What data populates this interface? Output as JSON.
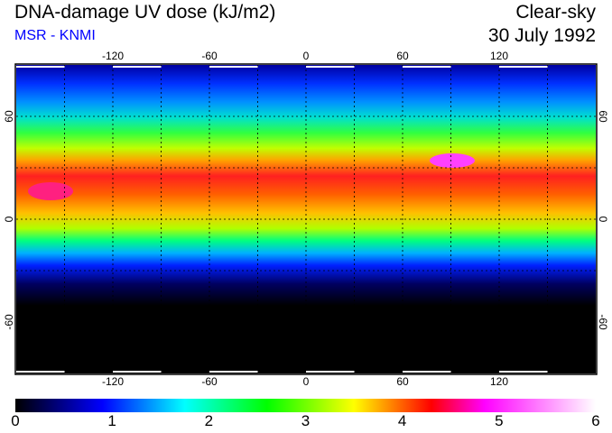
{
  "header": {
    "title": "DNA-damage UV dose (kJ/m2)",
    "credit": "MSR - KNMI",
    "condition": "Clear-sky",
    "date": "30 July 1992"
  },
  "map": {
    "lon_ticks": [
      "-120",
      "-60",
      "0",
      "60",
      "120"
    ],
    "lon_values": [
      -120,
      -60,
      0,
      60,
      120
    ],
    "lat_ticks": [
      "60",
      "0",
      "-60"
    ],
    "lat_values": [
      60,
      0,
      -60
    ],
    "lon_range": [
      -180,
      180
    ],
    "lat_range": [
      -90,
      90
    ]
  },
  "colorbar": {
    "ticks": [
      "0",
      "1",
      "2",
      "3",
      "4",
      "5",
      "6"
    ],
    "range": [
      0,
      6
    ],
    "stops": [
      {
        "value": 0,
        "color": "#000000"
      },
      {
        "value": 0.9,
        "color": "#0000ff"
      },
      {
        "value": 1.75,
        "color": "#00ffff"
      },
      {
        "value": 2.6,
        "color": "#00ff00"
      },
      {
        "value": 3.5,
        "color": "#ffff00"
      },
      {
        "value": 4.3,
        "color": "#ff0000"
      },
      {
        "value": 4.85,
        "color": "#ff00ff"
      },
      {
        "value": 6,
        "color": "#ffffff"
      }
    ]
  }
}
